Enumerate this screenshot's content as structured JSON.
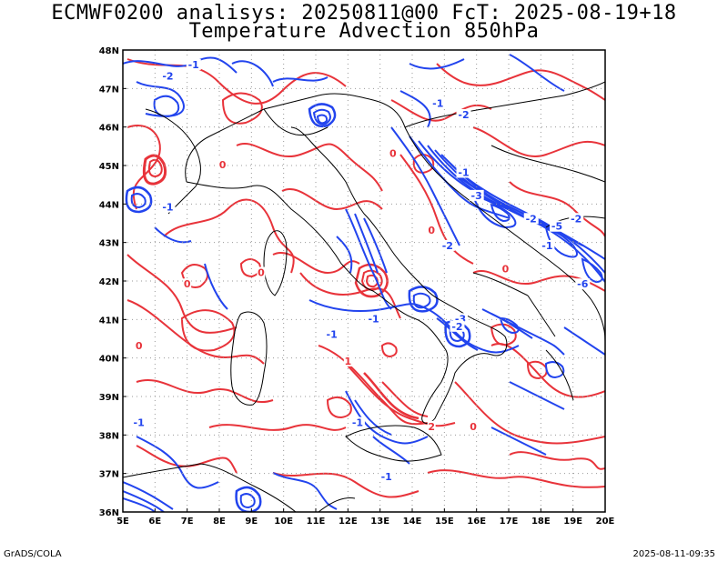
{
  "header": {
    "title_line1": "ECMWF0200 analisys: 20250811@00 FcT: 2025-08-19+18",
    "title_line2": "Temperature Advection 850hPa"
  },
  "footer": {
    "left": "GrADS/COLA",
    "right": "2025-08-11-09:35"
  },
  "map": {
    "lon_range": [
      5,
      20
    ],
    "lat_range": [
      36,
      48
    ],
    "lon_labels": [
      "5E",
      "6E",
      "7E",
      "8E",
      "9E",
      "10E",
      "11E",
      "12E",
      "13E",
      "14E",
      "15E",
      "16E",
      "17E",
      "18E",
      "19E",
      "20E"
    ],
    "lat_labels": [
      "36N",
      "37N",
      "38N",
      "39N",
      "40N",
      "41N",
      "42N",
      "43N",
      "44N",
      "45N",
      "46N",
      "47N",
      "48N"
    ],
    "colors": {
      "positive": "#e8333a",
      "negative": "#2244ee",
      "coast": "#000000",
      "grid": "#999999"
    },
    "contour_labels": [
      {
        "text": "-2",
        "lon": 6.4,
        "lat": 47.3,
        "color": "negative"
      },
      {
        "text": "-1",
        "lon": 7.2,
        "lat": 47.6,
        "color": "negative"
      },
      {
        "text": "-1",
        "lon": 6.4,
        "lat": 43.9,
        "color": "negative"
      },
      {
        "text": "-1",
        "lon": 12.8,
        "lat": 41.0,
        "color": "negative"
      },
      {
        "text": "-1",
        "lon": 11.5,
        "lat": 40.6,
        "color": "negative"
      },
      {
        "text": "-2",
        "lon": 15.6,
        "lat": 46.3,
        "color": "negative"
      },
      {
        "text": "-1",
        "lon": 15.6,
        "lat": 44.8,
        "color": "negative"
      },
      {
        "text": "-3",
        "lon": 16.0,
        "lat": 44.2,
        "color": "negative"
      },
      {
        "text": "-2",
        "lon": 17.7,
        "lat": 43.6,
        "color": "negative"
      },
      {
        "text": "-5",
        "lon": 18.5,
        "lat": 43.4,
        "color": "negative"
      },
      {
        "text": "-2",
        "lon": 19.1,
        "lat": 43.6,
        "color": "negative"
      },
      {
        "text": "-2",
        "lon": 15.1,
        "lat": 42.9,
        "color": "negative"
      },
      {
        "text": "-3",
        "lon": 15.5,
        "lat": 41.0,
        "color": "negative"
      },
      {
        "text": "-2",
        "lon": 15.4,
        "lat": 40.8,
        "color": "negative"
      },
      {
        "text": "-1",
        "lon": 12.3,
        "lat": 38.3,
        "color": "negative"
      },
      {
        "text": "-1",
        "lon": 13.2,
        "lat": 36.9,
        "color": "negative"
      },
      {
        "text": "-6",
        "lon": 19.3,
        "lat": 41.9,
        "color": "negative"
      },
      {
        "text": "-1",
        "lon": 18.2,
        "lat": 42.9,
        "color": "negative"
      },
      {
        "text": "-1",
        "lon": 14.8,
        "lat": 46.6,
        "color": "negative"
      },
      {
        "text": "0",
        "lon": 13.4,
        "lat": 45.3,
        "color": "positive"
      },
      {
        "text": "0",
        "lon": 14.6,
        "lat": 43.3,
        "color": "positive"
      },
      {
        "text": "0",
        "lon": 16.9,
        "lat": 42.3,
        "color": "positive"
      },
      {
        "text": "0",
        "lon": 7.0,
        "lat": 41.9,
        "color": "positive"
      },
      {
        "text": "0",
        "lon": 5.5,
        "lat": 40.3,
        "color": "positive"
      },
      {
        "text": "0",
        "lon": 8.1,
        "lat": 45.0,
        "color": "positive"
      },
      {
        "text": "2",
        "lon": 14.6,
        "lat": 38.2,
        "color": "positive"
      },
      {
        "text": "1",
        "lon": 12.0,
        "lat": 39.9,
        "color": "positive"
      },
      {
        "text": "0",
        "lon": 15.9,
        "lat": 38.2,
        "color": "positive"
      },
      {
        "text": "0",
        "lon": 9.3,
        "lat": 42.2,
        "color": "positive"
      },
      {
        "text": "-1",
        "lon": 5.5,
        "lat": 38.3,
        "color": "negative"
      }
    ]
  }
}
